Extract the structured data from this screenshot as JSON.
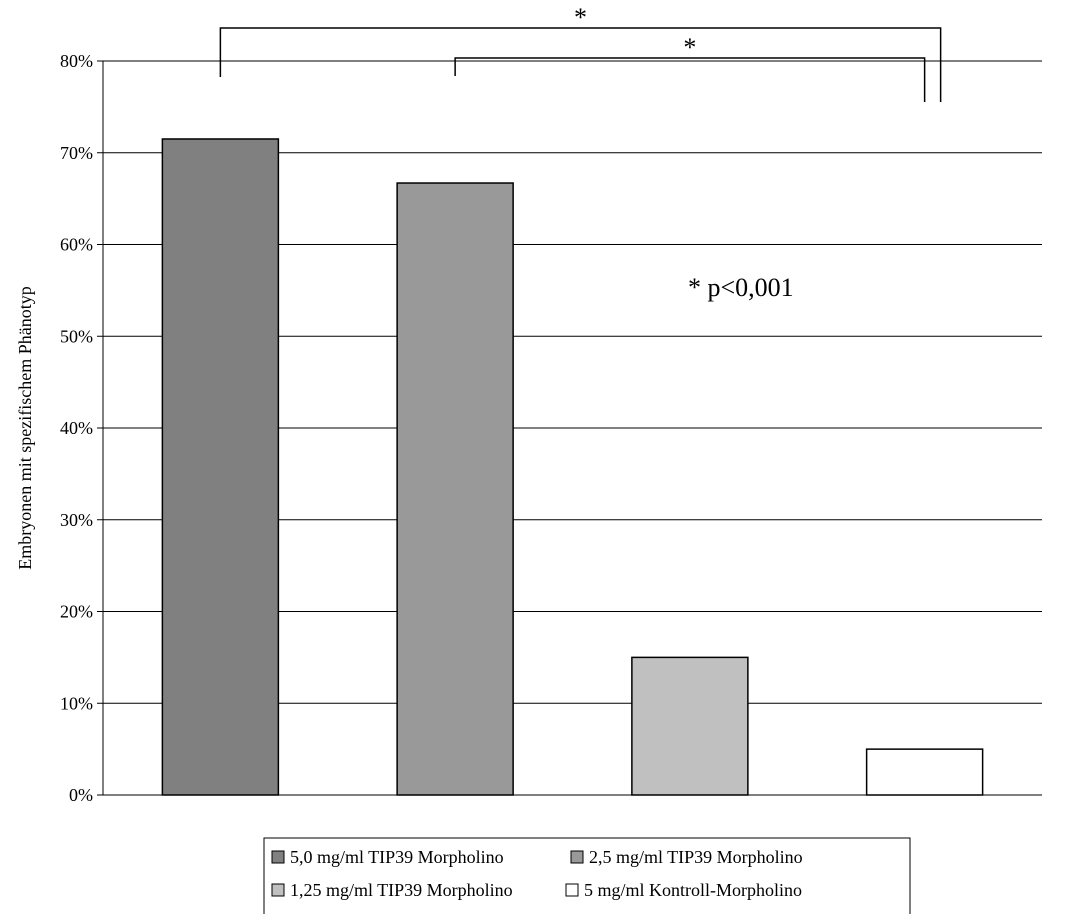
{
  "chart_data": {
    "type": "bar",
    "ylabel": "Embryonen mit spezifischem Phänotyp",
    "ylim": [
      0,
      0.8
    ],
    "yticks": [
      0,
      0.1,
      0.2,
      0.3,
      0.4,
      0.5,
      0.6,
      0.7,
      0.8
    ],
    "ytick_labels": [
      "0%",
      "10%",
      "20%",
      "30%",
      "40%",
      "50%",
      "60%",
      "70%",
      "80%"
    ],
    "grid": true,
    "legend_position": "bottom",
    "series": [
      {
        "name": "5,0 mg/ml TIP39 Morpholino",
        "value": 0.715,
        "color": "#808080"
      },
      {
        "name": "2,5 mg/ml TIP39 Morpholino",
        "value": 0.667,
        "color": "#999999"
      },
      {
        "name": "1,25 mg/ml TIP39 Morpholino",
        "value": 0.15,
        "color": "#c0c0c0"
      },
      {
        "name": "5 mg/ml Kontroll-Morpholino",
        "value": 0.05,
        "color": "#ffffff"
      }
    ],
    "annotations": {
      "significance_note": "* p<0,001",
      "brackets": [
        {
          "from": 0,
          "to": 3,
          "label": "*"
        },
        {
          "from": 1,
          "to": 3,
          "label": "*"
        }
      ]
    }
  }
}
